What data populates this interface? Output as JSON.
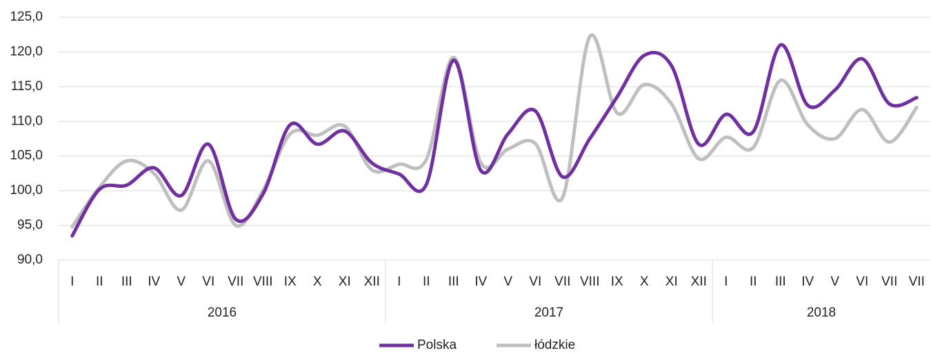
{
  "chart_data": {
    "type": "line",
    "groups": [
      {
        "name": "2016",
        "categories": [
          "I",
          "II",
          "III",
          "IV",
          "V",
          "VI",
          "VII",
          "VIII",
          "IX",
          "X",
          "XI",
          "XII"
        ]
      },
      {
        "name": "2017",
        "categories": [
          "I",
          "II",
          "III",
          "IV",
          "V",
          "VI",
          "VII",
          "VIII",
          "IX",
          "X",
          "XI",
          "XII"
        ]
      },
      {
        "name": "2018",
        "categories": [
          "I",
          "II",
          "III",
          "IV",
          "V",
          "VI",
          "VII",
          "VII"
        ]
      }
    ],
    "series": [
      {
        "name": "Polska",
        "color": "#7030a0",
        "values": [
          93.5,
          100.2,
          100.8,
          103.3,
          99.3,
          106.7,
          95.9,
          99.5,
          109.5,
          106.7,
          108.6,
          104.0,
          102.4,
          100.9,
          118.8,
          102.9,
          108.2,
          111.5,
          102.0,
          107.5,
          113.5,
          119.5,
          118.0,
          106.7,
          111.0,
          108.5,
          121.0,
          112.3,
          114.5,
          119.0,
          112.5,
          113.4
        ]
      },
      {
        "name": "łódzkie",
        "color": "#bfbfbf",
        "values": [
          94.8,
          100.5,
          104.3,
          102.5,
          97.2,
          104.3,
          95.0,
          100.0,
          108.2,
          108.0,
          109.3,
          103.0,
          103.8,
          104.5,
          119.2,
          104.0,
          106.0,
          106.8,
          99.0,
          122.2,
          111.2,
          115.3,
          112.5,
          104.6,
          107.7,
          106.2,
          115.9,
          109.5,
          107.5,
          111.7,
          107.0,
          112.0
        ]
      }
    ],
    "ylim": [
      90,
      125
    ],
    "yticks": [
      {
        "value": 90,
        "label": "90,0"
      },
      {
        "value": 95,
        "label": "95,0"
      },
      {
        "value": 100,
        "label": "100,0"
      },
      {
        "value": 105,
        "label": "105,0"
      },
      {
        "value": 110,
        "label": "110,0"
      },
      {
        "value": 115,
        "label": "115,0"
      },
      {
        "value": 120,
        "label": "120,0"
      },
      {
        "value": 125,
        "label": "125,0"
      }
    ],
    "grid": true,
    "smooth": true,
    "legend": "bottom"
  }
}
